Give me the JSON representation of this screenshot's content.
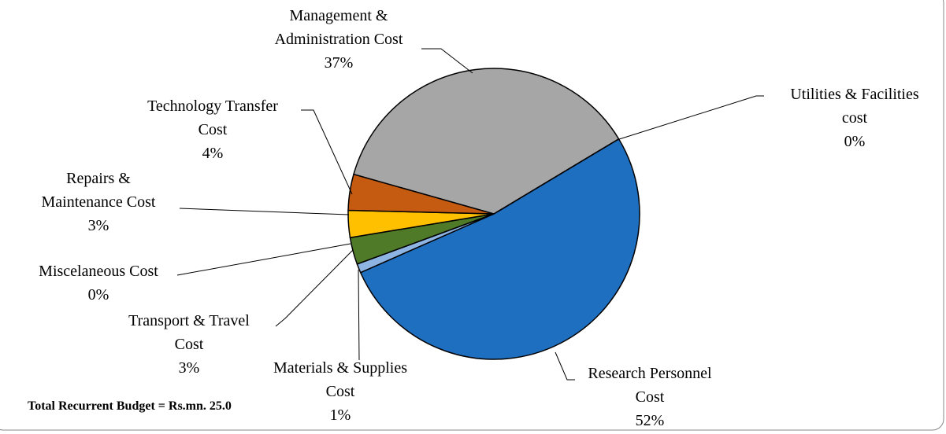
{
  "chart_data": {
    "type": "pie",
    "categories": [
      "Research Personnel Cost",
      "Materials & Supplies Cost",
      "Transport & Travel Cost",
      "Miscelaneous Cost",
      "Repairs & Maintenance Cost",
      "Technology Transfer Cost",
      "Management & Administration Cost",
      "Utilities & Facilities cost"
    ],
    "values": [
      52,
      1,
      3,
      0,
      3,
      4,
      37,
      0
    ],
    "value_labels": [
      "52%",
      "1%",
      "3%",
      "0%",
      "3%",
      "4%",
      "37%",
      "0%"
    ],
    "colors": [
      "#1f6fc0",
      "#8db4e2",
      "#4f7a28",
      "#bfbfbf",
      "#ffc000",
      "#c55a11",
      "#a6a6a6",
      "#00b050"
    ],
    "note": "Total Recurrent Budget =  Rs.mn. 25.0"
  }
}
